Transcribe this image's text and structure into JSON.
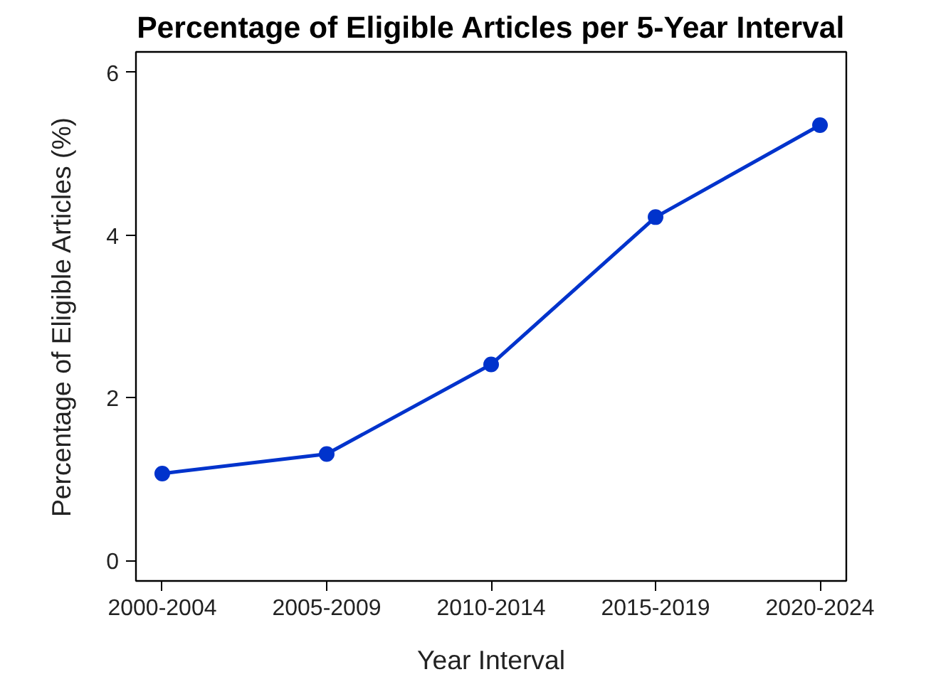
{
  "chart_data": {
    "type": "line",
    "title": "Percentage of Eligible Articles per 5-Year Interval",
    "xlabel": "Year Interval",
    "ylabel": "Percentage of Eligible Articles (%)",
    "categories": [
      "2000-2004",
      "2005-2009",
      "2010-2014",
      "2015-2019",
      "2020-2024"
    ],
    "series": [
      {
        "color": "#0033cc",
        "values": [
          1.07,
          1.31,
          2.41,
          4.22,
          5.35
        ]
      }
    ],
    "ylim": [
      -0.25,
      6.25
    ],
    "yticks": [
      0,
      2,
      4,
      6
    ],
    "grid": false,
    "marker": "circle",
    "line_style": "solid"
  }
}
